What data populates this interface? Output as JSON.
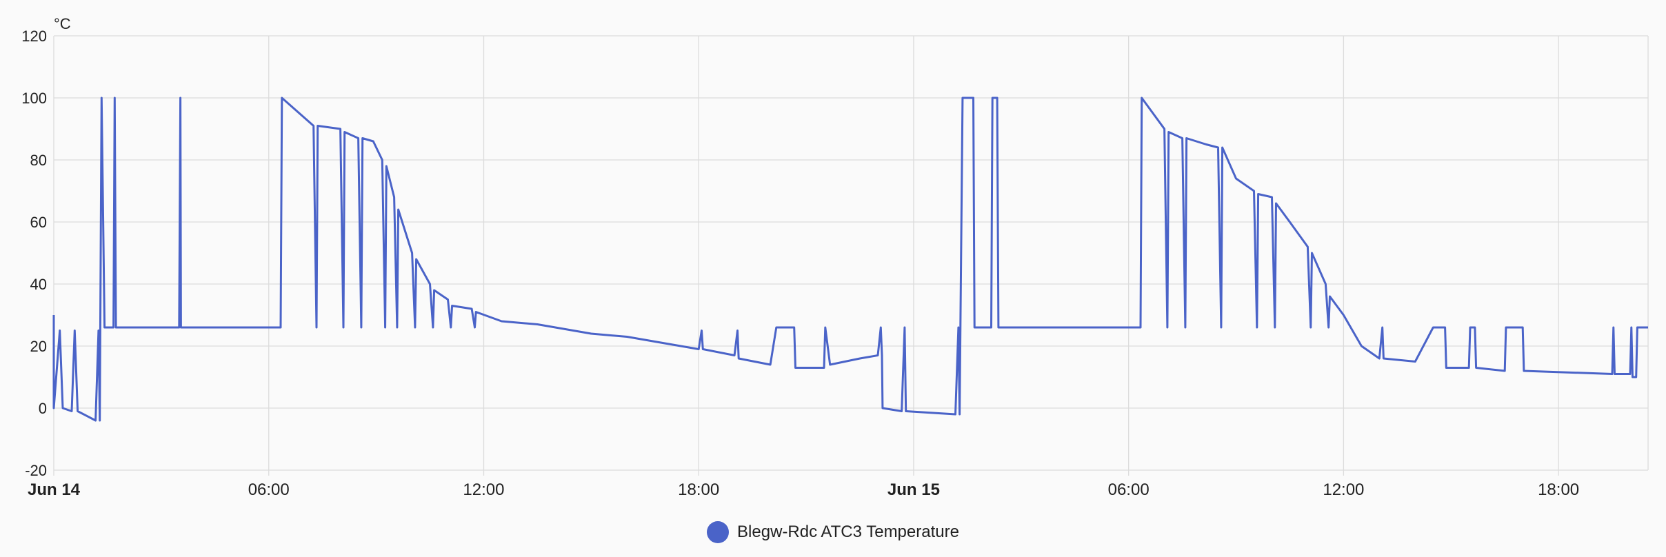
{
  "chart_data": {
    "type": "line",
    "unit_label": "°C",
    "ylim": [
      -20,
      120
    ],
    "y_ticks": [
      "120",
      "100",
      "80",
      "60",
      "40",
      "20",
      "0",
      "-20"
    ],
    "x_range": [
      "2024-06-14 00:00",
      "2024-06-15 20:30"
    ],
    "x_ticks": [
      {
        "label": "Jun 14",
        "time": "2024-06-14 00:00",
        "bold": true
      },
      {
        "label": "06:00",
        "time": "2024-06-14 06:00",
        "bold": false
      },
      {
        "label": "12:00",
        "time": "2024-06-14 12:00",
        "bold": false
      },
      {
        "label": "18:00",
        "time": "2024-06-14 18:00",
        "bold": false
      },
      {
        "label": "Jun 15",
        "time": "2024-06-15 00:00",
        "bold": true
      },
      {
        "label": "06:00",
        "time": "2024-06-15 06:00",
        "bold": false
      },
      {
        "label": "12:00",
        "time": "2024-06-15 12:00",
        "bold": false
      },
      {
        "label": "18:00",
        "time": "2024-06-15 18:00",
        "bold": false
      }
    ],
    "grid": true,
    "legend_position": "bottom-center",
    "series": [
      {
        "name": "Blegw-Rdc ATC3 Temperature",
        "color": "#4a63c8",
        "points": [
          [
            "2024-06-14 00:00",
            30
          ],
          [
            "2024-06-14 00:00",
            0
          ],
          [
            "2024-06-14 00:10",
            25
          ],
          [
            "2024-06-14 00:15",
            0
          ],
          [
            "2024-06-14 00:30",
            -1
          ],
          [
            "2024-06-14 00:35",
            25
          ],
          [
            "2024-06-14 00:40",
            -1
          ],
          [
            "2024-06-14 01:00",
            -3
          ],
          [
            "2024-06-14 01:10",
            -4
          ],
          [
            "2024-06-14 01:15",
            25
          ],
          [
            "2024-06-14 01:17",
            -4
          ],
          [
            "2024-06-14 01:20",
            100
          ],
          [
            "2024-06-14 01:25",
            26
          ],
          [
            "2024-06-14 01:40",
            26
          ],
          [
            "2024-06-14 01:42",
            100
          ],
          [
            "2024-06-14 01:44",
            26
          ],
          [
            "2024-06-14 03:30",
            26
          ],
          [
            "2024-06-14 03:32",
            100
          ],
          [
            "2024-06-14 03:33",
            26
          ],
          [
            "2024-06-14 06:20",
            26
          ],
          [
            "2024-06-14 06:22",
            100
          ],
          [
            "2024-06-14 07:15",
            91
          ],
          [
            "2024-06-14 07:20",
            26
          ],
          [
            "2024-06-14 07:22",
            91
          ],
          [
            "2024-06-14 08:00",
            90
          ],
          [
            "2024-06-14 08:05",
            26
          ],
          [
            "2024-06-14 08:07",
            89
          ],
          [
            "2024-06-14 08:30",
            87
          ],
          [
            "2024-06-14 08:35",
            26
          ],
          [
            "2024-06-14 08:37",
            87
          ],
          [
            "2024-06-14 08:55",
            86
          ],
          [
            "2024-06-14 09:10",
            80
          ],
          [
            "2024-06-14 09:15",
            26
          ],
          [
            "2024-06-14 09:17",
            78
          ],
          [
            "2024-06-14 09:30",
            68
          ],
          [
            "2024-06-14 09:35",
            26
          ],
          [
            "2024-06-14 09:37",
            64
          ],
          [
            "2024-06-14 10:00",
            50
          ],
          [
            "2024-06-14 10:05",
            26
          ],
          [
            "2024-06-14 10:07",
            48
          ],
          [
            "2024-06-14 10:30",
            40
          ],
          [
            "2024-06-14 10:35",
            26
          ],
          [
            "2024-06-14 10:37",
            38
          ],
          [
            "2024-06-14 11:00",
            35
          ],
          [
            "2024-06-14 11:05",
            26
          ],
          [
            "2024-06-14 11:07",
            33
          ],
          [
            "2024-06-14 11:40",
            32
          ],
          [
            "2024-06-14 11:45",
            26
          ],
          [
            "2024-06-14 11:47",
            31
          ],
          [
            "2024-06-14 12:30",
            28
          ],
          [
            "2024-06-14 13:30",
            27
          ],
          [
            "2024-06-14 14:00",
            26
          ],
          [
            "2024-06-14 15:00",
            24
          ],
          [
            "2024-06-14 16:00",
            23
          ],
          [
            "2024-06-14 17:00",
            21
          ],
          [
            "2024-06-14 18:00",
            19
          ],
          [
            "2024-06-14 18:05",
            25
          ],
          [
            "2024-06-14 18:07",
            19
          ],
          [
            "2024-06-14 19:00",
            17
          ],
          [
            "2024-06-14 19:05",
            25
          ],
          [
            "2024-06-14 19:07",
            16
          ],
          [
            "2024-06-14 20:00",
            14
          ],
          [
            "2024-06-14 20:10",
            26
          ],
          [
            "2024-06-14 20:40",
            26
          ],
          [
            "2024-06-14 20:42",
            13
          ],
          [
            "2024-06-14 21:30",
            13
          ],
          [
            "2024-06-14 21:32",
            26
          ],
          [
            "2024-06-14 21:40",
            14
          ],
          [
            "2024-06-14 22:30",
            16
          ],
          [
            "2024-06-14 23:00",
            17
          ],
          [
            "2024-06-14 23:05",
            26
          ],
          [
            "2024-06-14 23:07",
            17
          ],
          [
            "2024-06-14 23:08",
            0
          ],
          [
            "2024-06-14 23:40",
            -1
          ],
          [
            "2024-06-14 23:45",
            26
          ],
          [
            "2024-06-14 23:47",
            -1
          ],
          [
            "2024-06-15 01:10",
            -2
          ],
          [
            "2024-06-15 01:15",
            26
          ],
          [
            "2024-06-15 01:17",
            -2
          ],
          [
            "2024-06-15 01:22",
            100
          ],
          [
            "2024-06-15 01:40",
            100
          ],
          [
            "2024-06-15 01:42",
            26
          ],
          [
            "2024-06-15 02:10",
            26
          ],
          [
            "2024-06-15 02:12",
            100
          ],
          [
            "2024-06-15 02:20",
            100
          ],
          [
            "2024-06-15 02:22",
            26
          ],
          [
            "2024-06-15 06:20",
            26
          ],
          [
            "2024-06-15 06:22",
            100
          ],
          [
            "2024-06-15 07:00",
            90
          ],
          [
            "2024-06-15 07:05",
            26
          ],
          [
            "2024-06-15 07:07",
            89
          ],
          [
            "2024-06-15 07:30",
            87
          ],
          [
            "2024-06-15 07:35",
            26
          ],
          [
            "2024-06-15 07:37",
            87
          ],
          [
            "2024-06-15 08:10",
            85
          ],
          [
            "2024-06-15 08:30",
            84
          ],
          [
            "2024-06-15 08:35",
            26
          ],
          [
            "2024-06-15 08:37",
            84
          ],
          [
            "2024-06-15 09:00",
            74
          ],
          [
            "2024-06-15 09:30",
            70
          ],
          [
            "2024-06-15 09:35",
            26
          ],
          [
            "2024-06-15 09:37",
            69
          ],
          [
            "2024-06-15 10:00",
            68
          ],
          [
            "2024-06-15 10:05",
            26
          ],
          [
            "2024-06-15 10:07",
            66
          ],
          [
            "2024-06-15 10:30",
            60
          ],
          [
            "2024-06-15 11:00",
            52
          ],
          [
            "2024-06-15 11:05",
            26
          ],
          [
            "2024-06-15 11:07",
            50
          ],
          [
            "2024-06-15 11:30",
            40
          ],
          [
            "2024-06-15 11:35",
            26
          ],
          [
            "2024-06-15 11:37",
            36
          ],
          [
            "2024-06-15 12:00",
            30
          ],
          [
            "2024-06-15 12:30",
            20
          ],
          [
            "2024-06-15 13:00",
            16
          ],
          [
            "2024-06-15 13:05",
            26
          ],
          [
            "2024-06-15 13:07",
            16
          ],
          [
            "2024-06-15 14:00",
            15
          ],
          [
            "2024-06-15 14:30",
            26
          ],
          [
            "2024-06-15 14:50",
            26
          ],
          [
            "2024-06-15 14:52",
            13
          ],
          [
            "2024-06-15 15:30",
            13
          ],
          [
            "2024-06-15 15:32",
            26
          ],
          [
            "2024-06-15 15:40",
            26
          ],
          [
            "2024-06-15 15:42",
            13
          ],
          [
            "2024-06-15 16:30",
            12
          ],
          [
            "2024-06-15 16:32",
            26
          ],
          [
            "2024-06-15 17:00",
            26
          ],
          [
            "2024-06-15 17:02",
            12
          ],
          [
            "2024-06-15 19:30",
            11
          ],
          [
            "2024-06-15 19:32",
            26
          ],
          [
            "2024-06-15 19:34",
            11
          ],
          [
            "2024-06-15 20:00",
            11
          ],
          [
            "2024-06-15 20:02",
            26
          ],
          [
            "2024-06-15 20:04",
            10
          ],
          [
            "2024-06-15 20:10",
            10
          ],
          [
            "2024-06-15 20:12",
            26
          ],
          [
            "2024-06-15 20:30",
            26
          ]
        ]
      }
    ]
  }
}
